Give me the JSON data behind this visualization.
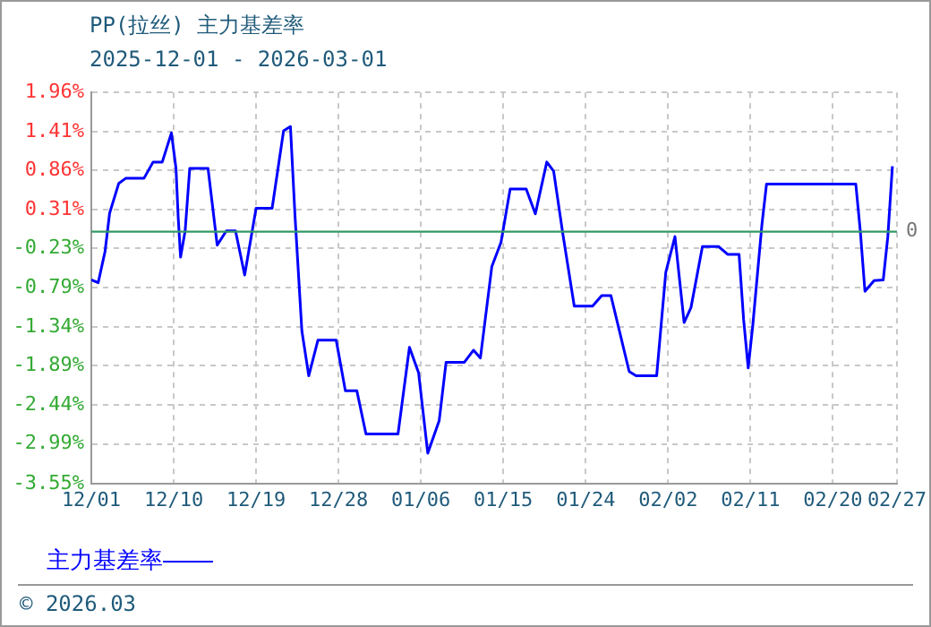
{
  "chart_data": {
    "type": "line",
    "title": "PP(拉丝) 主力基差率",
    "subtitle": "2025-12-01 - 2026-03-01",
    "x": [
      "2025-12-01",
      "2025-12-01T18:00",
      "2025-12-02T12:00",
      "2025-12-03",
      "2025-12-04",
      "2025-12-04T18:00",
      "2025-12-06T18:00",
      "2025-12-07T18:00",
      "2025-12-08T18:00",
      "2025-12-09T18:00",
      "2025-12-10T06:00",
      "2025-12-10T12:00",
      "2025-12-10T18:00",
      "2025-12-11T06:00",
      "2025-12-11T18:00",
      "2025-12-13T18:00",
      "2025-12-14T18:00",
      "2025-12-15T18:00",
      "2025-12-16T18:00",
      "2025-12-17T18:00",
      "2025-12-19",
      "2025-12-20T18:00",
      "2025-12-22",
      "2025-12-22T18:00",
      "2025-12-23T06:00",
      "2025-12-24",
      "2025-12-24T18:00",
      "2025-12-25T18:00",
      "2025-12-27T18:00",
      "2025-12-28T18:00",
      "2025-12-30",
      "2025-12-31",
      "2026-01-03T12:00",
      "2026-01-04T18:00",
      "2026-01-05T18:00",
      "2026-01-06T18:00",
      "2026-01-08",
      "2026-01-08T18:00",
      "2026-01-10T18:00",
      "2026-01-11T18:00",
      "2026-01-12T12:00",
      "2026-01-13T18:00",
      "2026-01-14T18:00",
      "2026-01-15T18:00",
      "2026-01-17T12:00",
      "2026-01-18T12:00",
      "2026-01-19T18:00",
      "2026-01-20T12:00",
      "2026-01-21T12:00",
      "2026-01-22T18:00",
      "2026-01-24T18:00",
      "2026-01-25T18:00",
      "2026-01-26T18:00",
      "2026-01-28T18:00",
      "2026-01-29T12:00",
      "2026-01-31T18:00",
      "2026-02-01T18:00",
      "2026-02-02T18:00",
      "2026-02-03T18:00",
      "2026-02-04T12:00",
      "2026-02-05T18:00",
      "2026-02-07T12:00",
      "2026-02-08T12:00",
      "2026-02-09T18:00",
      "2026-02-10T06:00",
      "2026-02-10T18:00",
      "2026-02-11T06:00",
      "2026-02-12T06:00",
      "2026-02-12T18:00",
      "2026-02-22T12:00",
      "2026-02-23",
      "2026-02-23T12:00",
      "2026-02-24T12:00",
      "2026-02-25T12:00",
      "2026-02-26",
      "2026-02-26T12:00"
    ],
    "series": [
      {
        "name": "主力基差率",
        "color": "#0000ff",
        "values": [
          -0.68,
          -0.72,
          -0.28,
          0.26,
          0.68,
          0.75,
          0.75,
          0.98,
          0.98,
          1.39,
          0.89,
          0.18,
          -0.36,
          0.01,
          0.89,
          0.89,
          -0.19,
          0.01,
          0.01,
          -0.61,
          0.33,
          0.33,
          1.42,
          1.48,
          0.22,
          -1.4,
          -2.03,
          -1.53,
          -1.53,
          -2.24,
          -2.24,
          -2.85,
          -2.85,
          -1.63,
          -1.99,
          -3.12,
          -2.66,
          -1.84,
          -1.84,
          -1.67,
          -1.78,
          -0.49,
          -0.15,
          0.6,
          0.6,
          0.25,
          0.98,
          0.85,
          -0.03,
          -1.05,
          -1.05,
          -0.9,
          -0.9,
          -1.97,
          -2.03,
          -2.03,
          -0.57,
          -0.07,
          -1.28,
          -1.07,
          -0.21,
          -0.21,
          -0.32,
          -0.32,
          -1.24,
          -1.92,
          -1.32,
          0.1,
          0.67,
          0.67,
          0.0,
          -0.84,
          -0.69,
          -0.68,
          -0.07,
          0.92
        ]
      }
    ],
    "xlim": [
      "2025-12-01",
      "2026-02-27"
    ],
    "xticks": [
      {
        "value": "2025-12-01",
        "label": "12/01"
      },
      {
        "value": "2025-12-10",
        "label": "12/10"
      },
      {
        "value": "2025-12-19",
        "label": "12/19"
      },
      {
        "value": "2025-12-28",
        "label": "12/28"
      },
      {
        "value": "2026-01-06",
        "label": "01/06"
      },
      {
        "value": "2026-01-15",
        "label": "01/15"
      },
      {
        "value": "2026-01-24",
        "label": "01/24"
      },
      {
        "value": "2026-02-02",
        "label": "02/02"
      },
      {
        "value": "2026-02-11",
        "label": "02/11"
      },
      {
        "value": "2026-02-20",
        "label": "02/20"
      },
      {
        "value": "2026-02-27",
        "label": "02/27"
      }
    ],
    "ylim": [
      -3.55,
      1.96
    ],
    "yticks": [
      {
        "value": 1.96,
        "label": "1.96%"
      },
      {
        "value": 1.41,
        "label": "1.41%"
      },
      {
        "value": 0.86,
        "label": "0.86%"
      },
      {
        "value": 0.31,
        "label": "0.31%"
      },
      {
        "value": -0.23,
        "label": "-0.23%"
      },
      {
        "value": -0.79,
        "label": "-0.79%"
      },
      {
        "value": -1.34,
        "label": "-1.34%"
      },
      {
        "value": -1.89,
        "label": "-1.89%"
      },
      {
        "value": -2.44,
        "label": "-2.44%"
      },
      {
        "value": -2.99,
        "label": "-2.99%"
      },
      {
        "value": -3.55,
        "label": "-3.55%"
      }
    ],
    "grid": true,
    "legend": "bottom",
    "marker": "none",
    "line_style": "solid",
    "ref_lines": [
      {
        "axis": "y",
        "value": 0,
        "label": "0",
        "color": "#339966"
      }
    ],
    "annotations": [
      "© 2026.03"
    ]
  }
}
